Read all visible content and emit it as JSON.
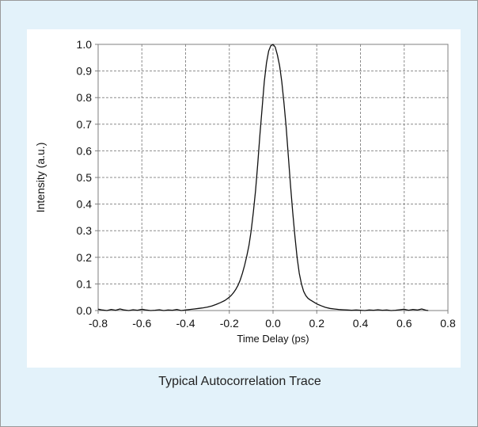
{
  "caption": "Typical Autocorrelation Trace",
  "colors": {
    "background": "#e3f2fa",
    "panel": "#ffffff",
    "trace": "#111111",
    "grid": "#8c8c8c"
  },
  "chart_data": {
    "type": "line",
    "title": "",
    "xlabel": "Time Delay (ps)",
    "ylabel": "Intensity (a.u.)",
    "xlim": [
      -0.8,
      0.8
    ],
    "ylim": [
      0.0,
      1.0
    ],
    "xticks": [
      -0.8,
      -0.6,
      -0.4,
      -0.2,
      0.0,
      0.2,
      0.4,
      0.6,
      0.8
    ],
    "yticks": [
      0.0,
      0.1,
      0.2,
      0.3,
      0.4,
      0.5,
      0.6,
      0.7,
      0.8,
      0.9,
      1.0
    ],
    "xtick_labels": [
      "-0.8",
      "-0.6",
      "-0.4",
      "-0.2",
      "0.0",
      "0.2",
      "0.4",
      "0.6",
      "0.8"
    ],
    "ytick_labels": [
      "0.0",
      "0.1",
      "0.2",
      "0.3",
      "0.4",
      "0.5",
      "0.6",
      "0.7",
      "0.8",
      "0.9",
      "1.0"
    ],
    "grid": true,
    "legend": "none",
    "series": [
      {
        "x": [
          -0.8,
          -0.78,
          -0.76,
          -0.74,
          -0.72,
          -0.7,
          -0.68,
          -0.66,
          -0.64,
          -0.62,
          -0.6,
          -0.58,
          -0.56,
          -0.54,
          -0.52,
          -0.5,
          -0.48,
          -0.46,
          -0.44,
          -0.42,
          -0.4,
          -0.38,
          -0.36,
          -0.34,
          -0.32,
          -0.3,
          -0.28,
          -0.26,
          -0.24,
          -0.22,
          -0.2,
          -0.19,
          -0.18,
          -0.17,
          -0.16,
          -0.15,
          -0.14,
          -0.13,
          -0.12,
          -0.11,
          -0.1,
          -0.09,
          -0.08,
          -0.07,
          -0.06,
          -0.05,
          -0.04,
          -0.03,
          -0.02,
          -0.01,
          0.0,
          0.01,
          0.02,
          0.03,
          0.04,
          0.05,
          0.06,
          0.07,
          0.08,
          0.09,
          0.1,
          0.11,
          0.12,
          0.13,
          0.14,
          0.15,
          0.16,
          0.17,
          0.18,
          0.2,
          0.22,
          0.24,
          0.26,
          0.28,
          0.3,
          0.32,
          0.34,
          0.36,
          0.38,
          0.4,
          0.42,
          0.44,
          0.46,
          0.48,
          0.5,
          0.52,
          0.54,
          0.56,
          0.58,
          0.6,
          0.62,
          0.64,
          0.66,
          0.68,
          0.7,
          0.71
        ],
        "y": [
          0.005,
          0.002,
          0.0,
          0.004,
          0.001,
          0.006,
          0.002,
          0.0,
          0.003,
          0.001,
          0.005,
          0.002,
          0.0,
          0.001,
          0.003,
          0.0,
          0.002,
          0.001,
          0.004,
          0.0,
          0.002,
          0.004,
          0.006,
          0.008,
          0.01,
          0.013,
          0.017,
          0.023,
          0.03,
          0.038,
          0.05,
          0.058,
          0.068,
          0.08,
          0.095,
          0.115,
          0.14,
          0.17,
          0.205,
          0.245,
          0.3,
          0.37,
          0.45,
          0.55,
          0.66,
          0.76,
          0.86,
          0.93,
          0.975,
          0.995,
          1.0,
          0.99,
          0.96,
          0.92,
          0.86,
          0.78,
          0.69,
          0.58,
          0.47,
          0.37,
          0.28,
          0.2,
          0.14,
          0.1,
          0.072,
          0.056,
          0.046,
          0.04,
          0.035,
          0.025,
          0.018,
          0.012,
          0.008,
          0.006,
          0.004,
          0.003,
          0.002,
          0.001,
          0.002,
          0.001,
          0.0,
          0.002,
          0.001,
          0.003,
          0.001,
          0.002,
          0.0,
          0.001,
          0.003,
          0.005,
          0.001,
          0.004,
          0.002,
          0.006,
          0.001,
          0.0
        ]
      }
    ]
  }
}
